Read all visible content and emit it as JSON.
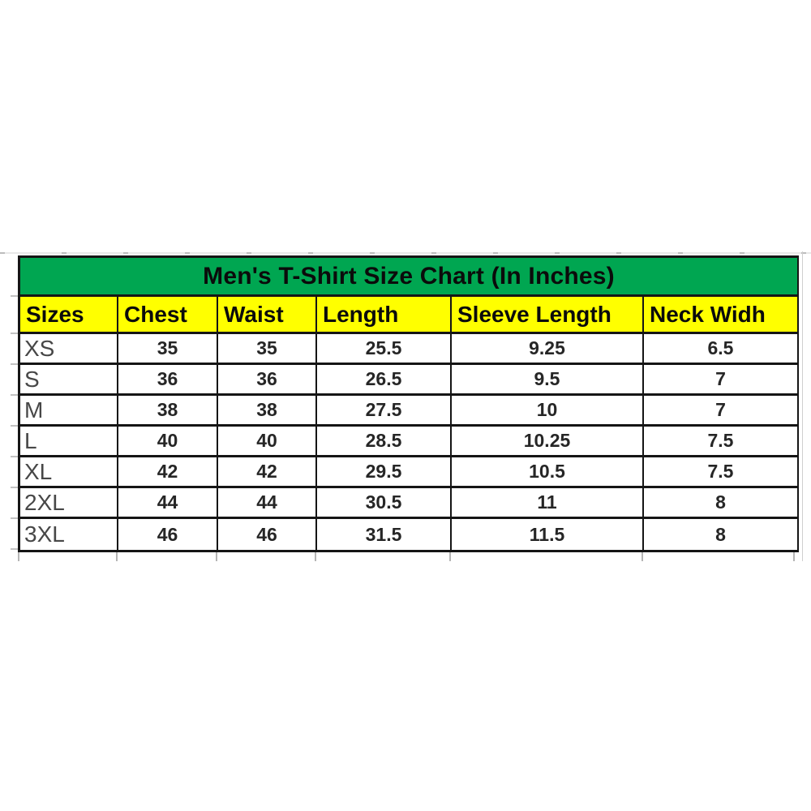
{
  "table": {
    "title": "Men's T-Shirt Size Chart (In Inches)",
    "columns": [
      "Sizes",
      "Chest",
      "Waist",
      "Length",
      "Sleeve Length",
      "Neck Widh"
    ],
    "rows": [
      {
        "size": "XS",
        "values": [
          "35",
          "35",
          "25.5",
          "9.25",
          "6.5"
        ]
      },
      {
        "size": "S",
        "values": [
          "36",
          "36",
          "26.5",
          "9.5",
          "7"
        ]
      },
      {
        "size": "M",
        "values": [
          "38",
          "38",
          "27.5",
          "10",
          "7"
        ]
      },
      {
        "size": "L",
        "values": [
          "40",
          "40",
          "28.5",
          "10.25",
          "7.5"
        ]
      },
      {
        "size": "XL",
        "values": [
          "42",
          "42",
          "29.5",
          "10.5",
          "7.5"
        ]
      },
      {
        "size": "2XL",
        "values": [
          "44",
          "44",
          "30.5",
          "11",
          "8"
        ]
      },
      {
        "size": "3XL",
        "values": [
          "46",
          "46",
          "31.5",
          "11.5",
          "8"
        ]
      }
    ],
    "colors": {
      "title_background": "#00a651",
      "header_background": "#ffff00",
      "border": "#151515",
      "size_label_text": "#474747",
      "value_text": "#262626"
    }
  },
  "chart_data": {
    "type": "table",
    "title": "Men's T-Shirt Size Chart (In Inches)",
    "units": "inches",
    "columns": [
      "Sizes",
      "Chest",
      "Waist",
      "Length",
      "Sleeve Length",
      "Neck Widh"
    ],
    "rows": [
      [
        "XS",
        35,
        35,
        25.5,
        9.25,
        6.5
      ],
      [
        "S",
        36,
        36,
        26.5,
        9.5,
        7
      ],
      [
        "M",
        38,
        38,
        27.5,
        10,
        7
      ],
      [
        "L",
        40,
        40,
        28.5,
        10.25,
        7.5
      ],
      [
        "XL",
        42,
        42,
        29.5,
        10.5,
        7.5
      ],
      [
        "2XL",
        44,
        44,
        30.5,
        11,
        8
      ],
      [
        "3XL",
        46,
        46,
        31.5,
        11.5,
        8
      ]
    ]
  }
}
